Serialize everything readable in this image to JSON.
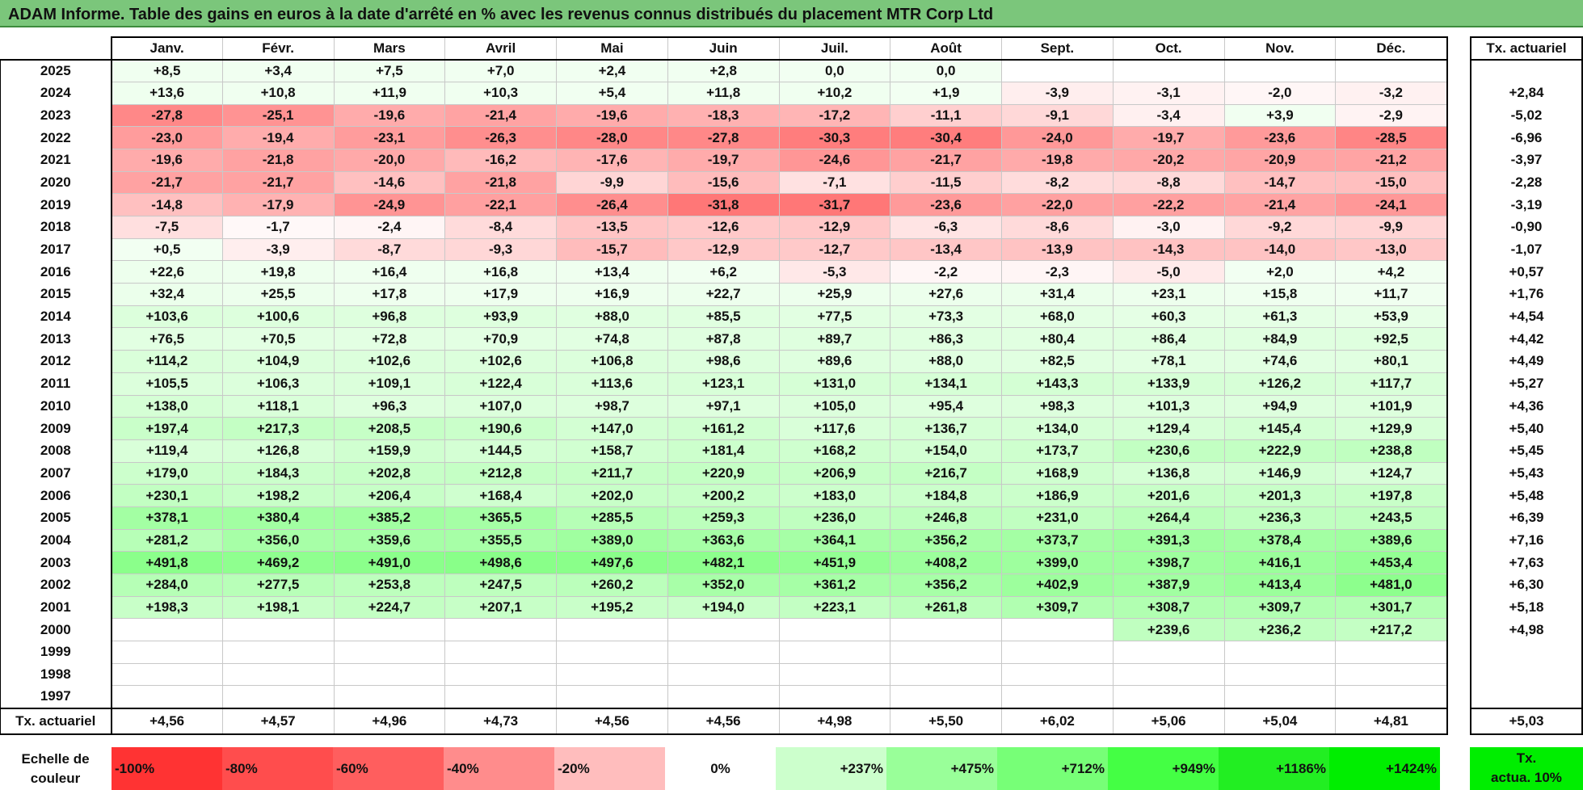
{
  "title": "ADAM Informe. Table des gains en euros à la date d'arrêté en % avec les revenus connus distribués du placement MTR Corp Ltd",
  "months": [
    "Janv.",
    "Févr.",
    "Mars",
    "Avril",
    "Mai",
    "Juin",
    "Juil.",
    "Août",
    "Sept.",
    "Oct.",
    "Nov.",
    "Déc."
  ],
  "side_header": "Tx. actuariel",
  "rows": [
    {
      "year": "2025",
      "values": [
        "+8,5",
        "+3,4",
        "+7,5",
        "+7,0",
        "+2,4",
        "+2,8",
        "0,0",
        "0,0",
        "",
        "",
        "",
        ""
      ],
      "tx": ""
    },
    {
      "year": "2024",
      "values": [
        "+13,6",
        "+10,8",
        "+11,9",
        "+10,3",
        "+5,4",
        "+11,8",
        "+10,2",
        "+1,9",
        "-3,9",
        "-3,1",
        "-2,0",
        "-3,2"
      ],
      "tx": "+2,84"
    },
    {
      "year": "2023",
      "values": [
        "-27,8",
        "-25,1",
        "-19,6",
        "-21,4",
        "-19,6",
        "-18,3",
        "-17,2",
        "-11,1",
        "-9,1",
        "-3,4",
        "+3,9",
        "-2,9"
      ],
      "tx": "-5,02"
    },
    {
      "year": "2022",
      "values": [
        "-23,0",
        "-19,4",
        "-23,1",
        "-26,3",
        "-28,0",
        "-27,8",
        "-30,3",
        "-30,4",
        "-24,0",
        "-19,7",
        "-23,6",
        "-28,5"
      ],
      "tx": "-6,96"
    },
    {
      "year": "2021",
      "values": [
        "-19,6",
        "-21,8",
        "-20,0",
        "-16,2",
        "-17,6",
        "-19,7",
        "-24,6",
        "-21,7",
        "-19,8",
        "-20,2",
        "-20,9",
        "-21,2"
      ],
      "tx": "-3,97"
    },
    {
      "year": "2020",
      "values": [
        "-21,7",
        "-21,7",
        "-14,6",
        "-21,8",
        "-9,9",
        "-15,6",
        "-7,1",
        "-11,5",
        "-8,2",
        "-8,8",
        "-14,7",
        "-15,0"
      ],
      "tx": "-2,28"
    },
    {
      "year": "2019",
      "values": [
        "-14,8",
        "-17,9",
        "-24,9",
        "-22,1",
        "-26,4",
        "-31,8",
        "-31,7",
        "-23,6",
        "-22,0",
        "-22,2",
        "-21,4",
        "-24,1"
      ],
      "tx": "-3,19"
    },
    {
      "year": "2018",
      "values": [
        "-7,5",
        "-1,7",
        "-2,4",
        "-8,4",
        "-13,5",
        "-12,6",
        "-12,9",
        "-6,3",
        "-8,6",
        "-3,0",
        "-9,2",
        "-9,9"
      ],
      "tx": "-0,90"
    },
    {
      "year": "2017",
      "values": [
        "+0,5",
        "-3,9",
        "-8,7",
        "-9,3",
        "-15,7",
        "-12,9",
        "-12,7",
        "-13,4",
        "-13,9",
        "-14,3",
        "-14,0",
        "-13,0"
      ],
      "tx": "-1,07"
    },
    {
      "year": "2016",
      "values": [
        "+22,6",
        "+19,8",
        "+16,4",
        "+16,8",
        "+13,4",
        "+6,2",
        "-5,3",
        "-2,2",
        "-2,3",
        "-5,0",
        "+2,0",
        "+4,2"
      ],
      "tx": "+0,57"
    },
    {
      "year": "2015",
      "values": [
        "+32,4",
        "+25,5",
        "+17,8",
        "+17,9",
        "+16,9",
        "+22,7",
        "+25,9",
        "+27,6",
        "+31,4",
        "+23,1",
        "+15,8",
        "+11,7"
      ],
      "tx": "+1,76"
    },
    {
      "year": "2014",
      "values": [
        "+103,6",
        "+100,6",
        "+96,8",
        "+93,9",
        "+88,0",
        "+85,5",
        "+77,5",
        "+73,3",
        "+68,0",
        "+60,3",
        "+61,3",
        "+53,9"
      ],
      "tx": "+4,54"
    },
    {
      "year": "2013",
      "values": [
        "+76,5",
        "+70,5",
        "+72,8",
        "+70,9",
        "+74,8",
        "+87,8",
        "+89,7",
        "+86,3",
        "+80,4",
        "+86,4",
        "+84,9",
        "+92,5"
      ],
      "tx": "+4,42"
    },
    {
      "year": "2012",
      "values": [
        "+114,2",
        "+104,9",
        "+102,6",
        "+102,6",
        "+106,8",
        "+98,6",
        "+89,6",
        "+88,0",
        "+82,5",
        "+78,1",
        "+74,6",
        "+80,1"
      ],
      "tx": "+4,49"
    },
    {
      "year": "2011",
      "values": [
        "+105,5",
        "+106,3",
        "+109,1",
        "+122,4",
        "+113,6",
        "+123,1",
        "+131,0",
        "+134,1",
        "+143,3",
        "+133,9",
        "+126,2",
        "+117,7"
      ],
      "tx": "+5,27"
    },
    {
      "year": "2010",
      "values": [
        "+138,0",
        "+118,1",
        "+96,3",
        "+107,0",
        "+98,7",
        "+97,1",
        "+105,0",
        "+95,4",
        "+98,3",
        "+101,3",
        "+94,9",
        "+101,9"
      ],
      "tx": "+4,36"
    },
    {
      "year": "2009",
      "values": [
        "+197,4",
        "+217,3",
        "+208,5",
        "+190,6",
        "+147,0",
        "+161,2",
        "+117,6",
        "+136,7",
        "+134,0",
        "+129,4",
        "+145,4",
        "+129,9"
      ],
      "tx": "+5,40"
    },
    {
      "year": "2008",
      "values": [
        "+119,4",
        "+126,8",
        "+159,9",
        "+144,5",
        "+158,7",
        "+181,4",
        "+168,2",
        "+154,0",
        "+173,7",
        "+230,6",
        "+222,9",
        "+238,8"
      ],
      "tx": "+5,45"
    },
    {
      "year": "2007",
      "values": [
        "+179,0",
        "+184,3",
        "+202,8",
        "+212,8",
        "+211,7",
        "+220,9",
        "+206,9",
        "+216,7",
        "+168,9",
        "+136,8",
        "+146,9",
        "+124,7"
      ],
      "tx": "+5,43"
    },
    {
      "year": "2006",
      "values": [
        "+230,1",
        "+198,2",
        "+206,4",
        "+168,4",
        "+202,0",
        "+200,2",
        "+183,0",
        "+184,8",
        "+186,9",
        "+201,6",
        "+201,3",
        "+197,8"
      ],
      "tx": "+5,48"
    },
    {
      "year": "2005",
      "values": [
        "+378,1",
        "+380,4",
        "+385,2",
        "+365,5",
        "+285,5",
        "+259,3",
        "+236,0",
        "+246,8",
        "+231,0",
        "+264,4",
        "+236,3",
        "+243,5"
      ],
      "tx": "+6,39"
    },
    {
      "year": "2004",
      "values": [
        "+281,2",
        "+356,0",
        "+359,6",
        "+355,5",
        "+389,0",
        "+363,6",
        "+364,1",
        "+356,2",
        "+373,7",
        "+391,3",
        "+378,4",
        "+389,6"
      ],
      "tx": "+7,16"
    },
    {
      "year": "2003",
      "values": [
        "+491,8",
        "+469,2",
        "+491,0",
        "+498,6",
        "+497,6",
        "+482,1",
        "+451,9",
        "+408,2",
        "+399,0",
        "+398,7",
        "+416,1",
        "+453,4"
      ],
      "tx": "+7,63"
    },
    {
      "year": "2002",
      "values": [
        "+284,0",
        "+277,5",
        "+253,8",
        "+247,5",
        "+260,2",
        "+352,0",
        "+361,2",
        "+356,2",
        "+402,9",
        "+387,9",
        "+413,4",
        "+481,0"
      ],
      "tx": "+6,30"
    },
    {
      "year": "2001",
      "values": [
        "+198,3",
        "+198,1",
        "+224,7",
        "+207,1",
        "+195,2",
        "+194,0",
        "+223,1",
        "+261,8",
        "+309,7",
        "+308,7",
        "+309,7",
        "+301,7"
      ],
      "tx": "+5,18"
    },
    {
      "year": "2000",
      "values": [
        "",
        "",
        "",
        "",
        "",
        "",
        "",
        "",
        "",
        "+239,6",
        "+236,2",
        "+217,2"
      ],
      "tx": "+4,98"
    },
    {
      "year": "1999",
      "values": [
        "",
        "",
        "",
        "",
        "",
        "",
        "",
        "",
        "",
        "",
        "",
        ""
      ],
      "tx": ""
    },
    {
      "year": "1998",
      "values": [
        "",
        "",
        "",
        "",
        "",
        "",
        "",
        "",
        "",
        "",
        "",
        ""
      ],
      "tx": ""
    },
    {
      "year": "1997",
      "values": [
        "",
        "",
        "",
        "",
        "",
        "",
        "",
        "",
        "",
        "",
        "",
        ""
      ],
      "tx": ""
    }
  ],
  "footer": {
    "label": "Tx. actuariel",
    "values": [
      "+4,56",
      "+4,57",
      "+4,96",
      "+4,73",
      "+4,56",
      "+4,56",
      "+4,98",
      "+5,50",
      "+6,02",
      "+5,06",
      "+5,04",
      "+4,81"
    ],
    "tx": "+5,03"
  },
  "scale": {
    "label_line1": "Echelle de",
    "label_line2": "couleur",
    "items": [
      {
        "text": "-100%",
        "color": "#ff3333",
        "kind": "neg"
      },
      {
        "text": "-80%",
        "color": "#ff4d4d",
        "kind": "neg"
      },
      {
        "text": "-60%",
        "color": "#ff5e5e",
        "kind": "neg"
      },
      {
        "text": "-40%",
        "color": "#ff8c8c",
        "kind": "neg"
      },
      {
        "text": "-20%",
        "color": "#ffbdbd",
        "kind": "neg"
      },
      {
        "text": "0%",
        "color": "#ffffff",
        "kind": "zero"
      },
      {
        "text": "+237%",
        "color": "#ccffcc",
        "kind": "pos"
      },
      {
        "text": "+475%",
        "color": "#99ff99",
        "kind": "pos"
      },
      {
        "text": "+712%",
        "color": "#77ff77",
        "kind": "pos"
      },
      {
        "text": "+949%",
        "color": "#44ff44",
        "kind": "pos"
      },
      {
        "text": "+1186%",
        "color": "#22ee22",
        "kind": "pos"
      },
      {
        "text": "+1424%",
        "color": "#00ee00",
        "kind": "pos"
      }
    ],
    "side_line1": "Tx.",
    "side_line2": "actua. 10%",
    "side_color": "#00ee00"
  },
  "colors": {
    "title_bg": "#7bc67b"
  }
}
